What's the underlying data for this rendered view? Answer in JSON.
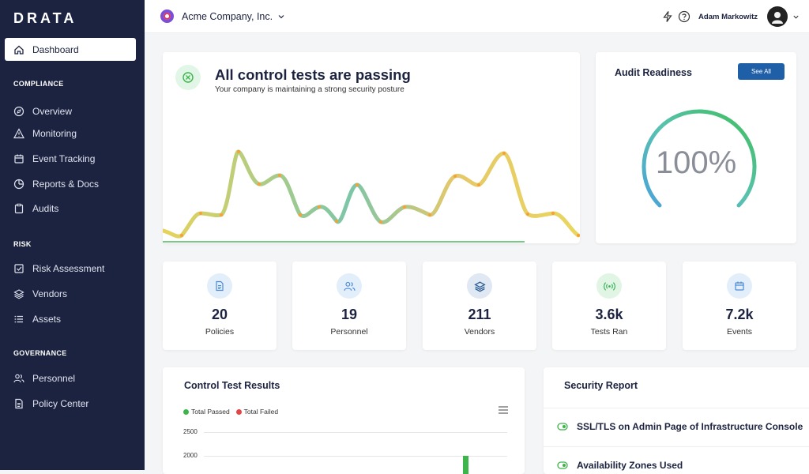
{
  "app": {
    "logo": "DRATA"
  },
  "sidebar": {
    "active": {
      "label": "Dashboard",
      "icon": "home-icon"
    },
    "sections": [
      {
        "title": "COMPLIANCE",
        "items": [
          {
            "label": "Overview",
            "icon": "compass-icon"
          },
          {
            "label": "Monitoring",
            "icon": "warning-icon"
          },
          {
            "label": "Event Tracking",
            "icon": "calendar-icon"
          },
          {
            "label": "Reports & Docs",
            "icon": "pie-icon"
          },
          {
            "label": "Audits",
            "icon": "clipboard-icon"
          }
        ]
      },
      {
        "title": "RISK",
        "items": [
          {
            "label": "Risk Assessment",
            "icon": "checkbox-icon"
          },
          {
            "label": "Vendors",
            "icon": "layers-icon"
          },
          {
            "label": "Assets",
            "icon": "list-icon"
          }
        ]
      },
      {
        "title": "GOVERNANCE",
        "items": [
          {
            "label": "Personnel",
            "icon": "users-icon"
          },
          {
            "label": "Policy Center",
            "icon": "document-icon"
          }
        ]
      }
    ]
  },
  "topbar": {
    "company": "Acme Company, Inc.",
    "user": "Adam Markowitz"
  },
  "hero": {
    "title": "All control tests are passing",
    "subtitle": "Your company is maintaining a strong security posture"
  },
  "audit": {
    "title": "Audit Readiness",
    "button": "See All",
    "value": "100%",
    "percent": 100
  },
  "stats": [
    {
      "value": "20",
      "label": "Policies",
      "icon": "document-icon",
      "bg": "#e3eefb",
      "fg": "#4a8ad8"
    },
    {
      "value": "19",
      "label": "Personnel",
      "icon": "users-icon",
      "bg": "#e3eefb",
      "fg": "#4a8ad8"
    },
    {
      "value": "211",
      "label": "Vendors",
      "icon": "layers-icon",
      "bg": "#dfe8f3",
      "fg": "#2b5b93"
    },
    {
      "value": "3.6k",
      "label": "Tests Ran",
      "icon": "signal-icon",
      "bg": "#e1f5e5",
      "fg": "#3bb25a"
    },
    {
      "value": "7.2k",
      "label": "Events",
      "icon": "calendar-icon",
      "bg": "#e3eefb",
      "fg": "#4a8ad8"
    }
  ],
  "control_results": {
    "title": "Control Test Results",
    "legend": [
      {
        "label": "Total Passed",
        "color": "#3cb54a"
      },
      {
        "label": "Total Failed",
        "color": "#e04646"
      }
    ],
    "y_ticks": [
      "2500",
      "2000"
    ]
  },
  "security_report": {
    "title": "Security Report",
    "items": [
      "SSL/TLS on Admin Page of Infrastructure Console",
      "Availability Zones Used"
    ]
  },
  "colors": {
    "sidebar": "#1c2340",
    "accent": "#1f5fa8",
    "pass": "#3cb54a",
    "fail": "#e04646"
  }
}
